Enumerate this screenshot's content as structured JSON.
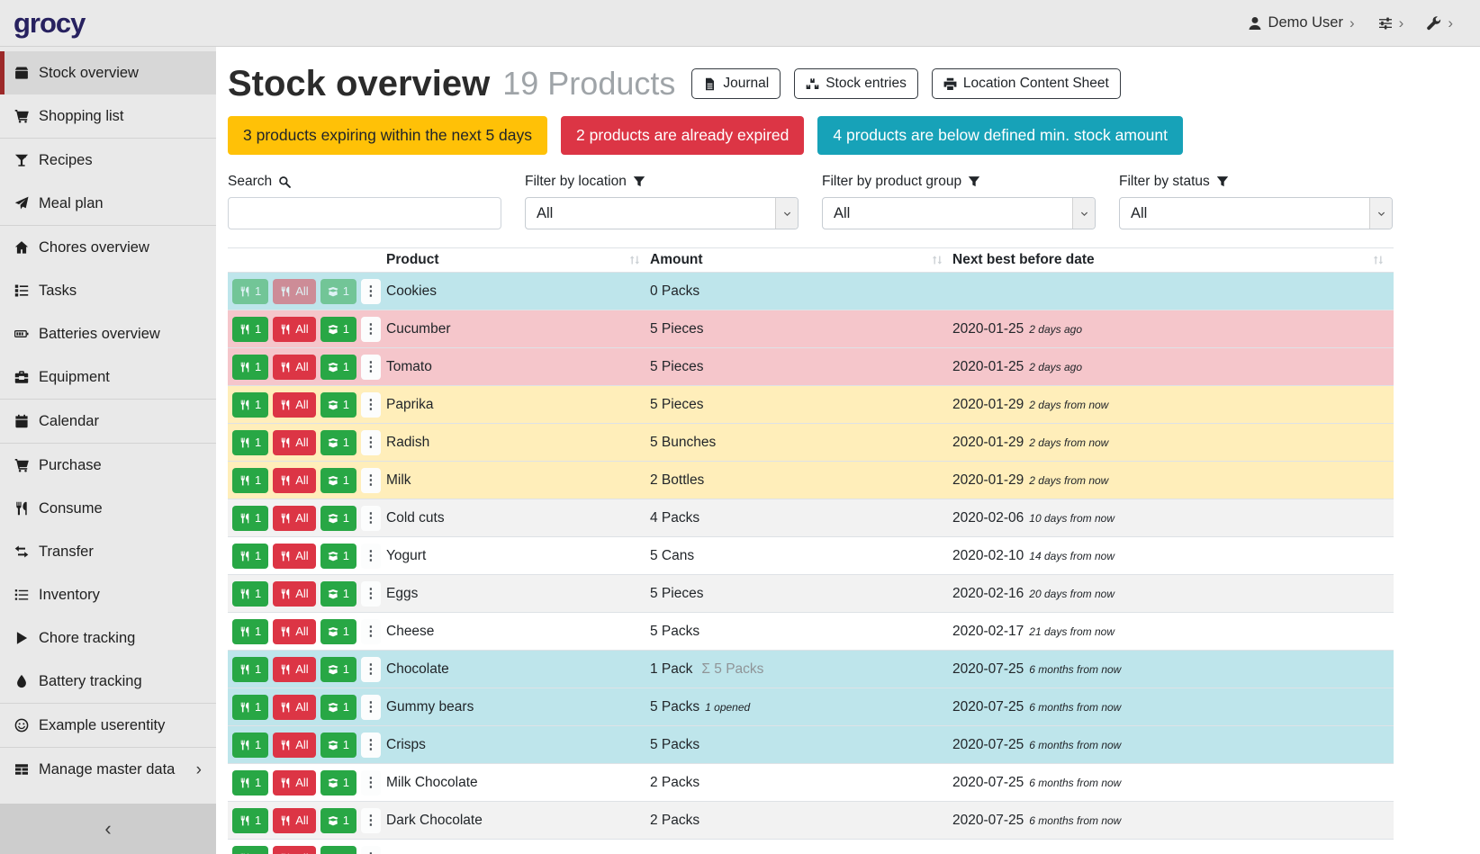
{
  "app": {
    "logo_text": "grocy"
  },
  "topbar": {
    "chevron": "›",
    "user": {
      "label": "Demo User",
      "icon": "user-icon"
    },
    "settings_icon": "sliders-icon",
    "admin_icon": "wrench-icon"
  },
  "sidebar": {
    "collapse_glyph": "‹",
    "items": [
      {
        "label": "Stock overview",
        "icon": "box-icon",
        "active": true
      },
      {
        "label": "Shopping list",
        "icon": "shopping-cart-icon",
        "divider_after": true
      },
      {
        "label": "Recipes",
        "icon": "cocktail-icon"
      },
      {
        "label": "Meal plan",
        "icon": "paper-plane-icon",
        "divider_after": true
      },
      {
        "label": "Chores overview",
        "icon": "home-icon"
      },
      {
        "label": "Tasks",
        "icon": "tasks-icon"
      },
      {
        "label": "Batteries overview",
        "icon": "battery-icon"
      },
      {
        "label": "Equipment",
        "icon": "toolbox-icon",
        "divider_after": true
      },
      {
        "label": "Calendar",
        "icon": "calendar-icon",
        "divider_after": true
      },
      {
        "label": "Purchase",
        "icon": "shopping-cart-icon"
      },
      {
        "label": "Consume",
        "icon": "utensils-icon"
      },
      {
        "label": "Transfer",
        "icon": "exchange-icon"
      },
      {
        "label": "Inventory",
        "icon": "list-icon"
      },
      {
        "label": "Chore tracking",
        "icon": "play-icon"
      },
      {
        "label": "Battery tracking",
        "icon": "tint-icon",
        "divider_after": true
      },
      {
        "label": "Example userentity",
        "icon": "smile-icon",
        "divider_after": true
      },
      {
        "label": "Manage master data",
        "icon": "table-icon",
        "chevron": true
      }
    ]
  },
  "page": {
    "title": "Stock overview",
    "subtitle": "19 Products",
    "toolbar": [
      {
        "label": "Journal",
        "icon": "file-icon"
      },
      {
        "label": "Stock entries",
        "icon": "boxes-icon"
      },
      {
        "label": "Location Content Sheet",
        "icon": "print-icon"
      }
    ],
    "banners": [
      {
        "type": "warning",
        "text": "3 products expiring within the next 5 days",
        "color": "#ffc107",
        "text_color": "#212529"
      },
      {
        "type": "danger",
        "text": "2 products are already expired",
        "color": "#dc3545",
        "text_color": "#ffffff"
      },
      {
        "type": "info",
        "text": "4 products are below defined min. stock amount",
        "color": "#17a2b8",
        "text_color": "#ffffff"
      }
    ],
    "filters": [
      {
        "label": "Search",
        "icon": "search-icon",
        "type": "input",
        "value": "",
        "placeholder": ""
      },
      {
        "label": "Filter by location",
        "icon": "filter-icon",
        "type": "select",
        "value": "All"
      },
      {
        "label": "Filter by product group",
        "icon": "filter-icon",
        "type": "select",
        "value": "All"
      },
      {
        "label": "Filter by status",
        "icon": "filter-icon",
        "type": "select",
        "value": "All"
      }
    ],
    "table": {
      "columns": [
        "Product",
        "Amount",
        "Next best before date"
      ],
      "row_actions": {
        "consume_one": "1",
        "consume_all": "All",
        "open_one": "1"
      },
      "action_colors": {
        "consume_one": "#28a745",
        "consume_all": "#dc3545",
        "open_one": "#28a745"
      },
      "status_colors": {
        "info": "#bee5eb",
        "danger": "#f5c6cb",
        "warning": "#ffeeba",
        "stripe": "#f2f2f2",
        "plain": "#ffffff"
      },
      "rows": [
        {
          "product": "Cookies",
          "amount": "0 Packs",
          "amount_sum": "",
          "amount_note": "",
          "date": "",
          "date_note": "",
          "status": "info",
          "actions_disabled": true
        },
        {
          "product": "Cucumber",
          "amount": "5 Pieces",
          "amount_sum": "",
          "amount_note": "",
          "date": "2020-01-25",
          "date_note": "2 days ago",
          "status": "danger"
        },
        {
          "product": "Tomato",
          "amount": "5 Pieces",
          "amount_sum": "",
          "amount_note": "",
          "date": "2020-01-25",
          "date_note": "2 days ago",
          "status": "danger"
        },
        {
          "product": "Paprika",
          "amount": "5 Pieces",
          "amount_sum": "",
          "amount_note": "",
          "date": "2020-01-29",
          "date_note": "2 days from now",
          "status": "warning"
        },
        {
          "product": "Radish",
          "amount": "5 Bunches",
          "amount_sum": "",
          "amount_note": "",
          "date": "2020-01-29",
          "date_note": "2 days from now",
          "status": "warning"
        },
        {
          "product": "Milk",
          "amount": "2 Bottles",
          "amount_sum": "",
          "amount_note": "",
          "date": "2020-01-29",
          "date_note": "2 days from now",
          "status": "warning"
        },
        {
          "product": "Cold cuts",
          "amount": "4 Packs",
          "amount_sum": "",
          "amount_note": "",
          "date": "2020-02-06",
          "date_note": "10 days from now",
          "status": "none"
        },
        {
          "product": "Yogurt",
          "amount": "5 Cans",
          "amount_sum": "",
          "amount_note": "",
          "date": "2020-02-10",
          "date_note": "14 days from now",
          "status": "none"
        },
        {
          "product": "Eggs",
          "amount": "5 Pieces",
          "amount_sum": "",
          "amount_note": "",
          "date": "2020-02-16",
          "date_note": "20 days from now",
          "status": "none"
        },
        {
          "product": "Cheese",
          "amount": "5 Packs",
          "amount_sum": "",
          "amount_note": "",
          "date": "2020-02-17",
          "date_note": "21 days from now",
          "status": "none"
        },
        {
          "product": "Chocolate",
          "amount": "1 Pack",
          "amount_sum": "Σ 5 Packs",
          "amount_note": "",
          "date": "2020-07-25",
          "date_note": "6 months from now",
          "status": "info"
        },
        {
          "product": "Gummy bears",
          "amount": "5 Packs",
          "amount_sum": "",
          "amount_note": "1 opened",
          "date": "2020-07-25",
          "date_note": "6 months from now",
          "status": "info"
        },
        {
          "product": "Crisps",
          "amount": "5 Packs",
          "amount_sum": "",
          "amount_note": "",
          "date": "2020-07-25",
          "date_note": "6 months from now",
          "status": "info"
        },
        {
          "product": "Milk Chocolate",
          "amount": "2 Packs",
          "amount_sum": "",
          "amount_note": "",
          "date": "2020-07-25",
          "date_note": "6 months from now",
          "status": "none"
        },
        {
          "product": "Dark Chocolate",
          "amount": "2 Packs",
          "amount_sum": "",
          "amount_note": "",
          "date": "2020-07-25",
          "date_note": "6 months from now",
          "status": "none"
        },
        {
          "product": "",
          "amount": "",
          "amount_sum": "",
          "amount_note": "",
          "date": "",
          "date_note": "",
          "status": "none"
        }
      ]
    }
  }
}
